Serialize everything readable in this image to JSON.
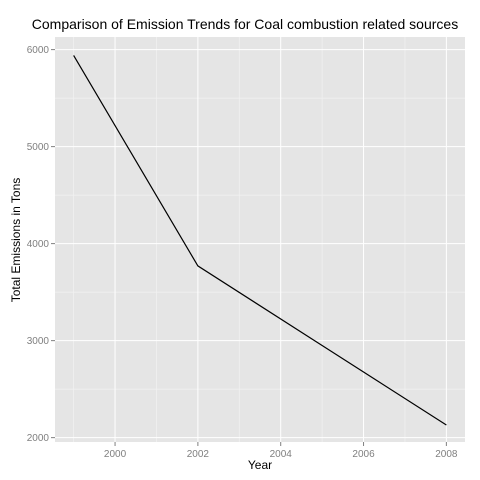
{
  "chart_data": {
    "type": "line",
    "title": "Comparison of Emission Trends for Coal combustion related sources",
    "xlabel": "Year",
    "ylabel": "Total Emissions in Tons",
    "x": [
      1999,
      2002,
      2005,
      2008
    ],
    "series": [
      {
        "values": [
          5940,
          3770,
          2950,
          2130
        ]
      }
    ],
    "xlim": [
      1998.55,
      2008.45
    ],
    "ylim": [
      1955,
      6130
    ],
    "xticks": [
      2000,
      2002,
      2004,
      2006,
      2008
    ],
    "yticks": [
      2000,
      3000,
      4000,
      5000,
      6000
    ],
    "grid": true,
    "panel_color": "#e5e5e5",
    "line_color": "#000000"
  }
}
